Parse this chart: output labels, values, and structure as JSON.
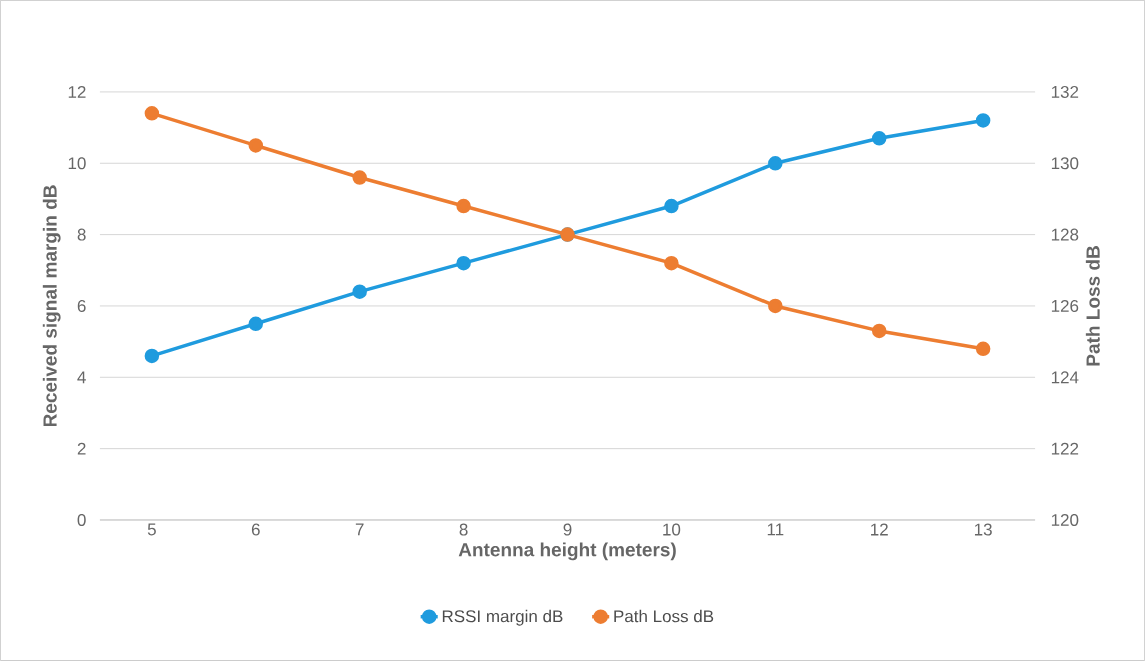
{
  "chart_data": {
    "type": "line",
    "xlabel": "Antenna height (meters)",
    "ylabel": "Received signal margin dB",
    "y2label": "Path Loss dB",
    "categories": [
      "5",
      "6",
      "7",
      "8",
      "9",
      "10",
      "11",
      "12",
      "13"
    ],
    "series": [
      {
        "name": "RSSI margin dB",
        "color": "#1f9bde",
        "values": [
          4.6,
          5.5,
          6.4,
          7.2,
          8.0,
          8.8,
          10.0,
          10.7,
          11.2
        ]
      },
      {
        "name": "Path Loss dB",
        "color": "#ed7d31",
        "axis": "y2",
        "values": [
          131.4,
          130.5,
          129.6,
          128.8,
          128.0,
          127.2,
          126.0,
          125.3,
          124.8
        ]
      }
    ],
    "ylim": [
      0,
      12
    ],
    "yticks": [
      0,
      2,
      4,
      6,
      8,
      10,
      12
    ],
    "y2lim": [
      120,
      132
    ],
    "y2ticks": [
      120,
      122,
      124,
      126,
      128,
      130,
      132
    ],
    "grid": "y",
    "legend": "bottom",
    "marker": "circle",
    "line_style": "solid"
  }
}
